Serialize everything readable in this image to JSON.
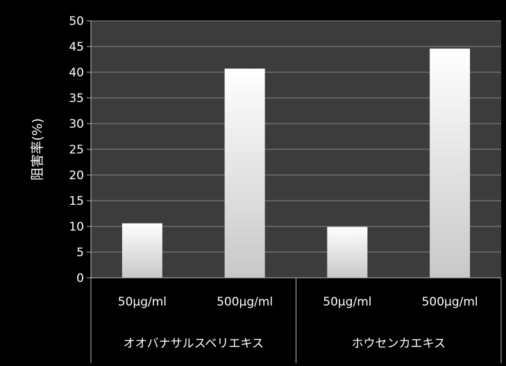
{
  "chart_data": {
    "type": "bar",
    "title": "",
    "xlabel": "",
    "ylabel": "阻害率(%)",
    "ylim": [
      0,
      50
    ],
    "ytick_step": 5,
    "grid": true,
    "legend": "none",
    "groups": [
      {
        "label": "オオバナサルスベリエキス",
        "categories": [
          "50µg/ml",
          "500µg/ml"
        ],
        "values": [
          10.6,
          40.7
        ]
      },
      {
        "label": "ホウセンカエキス",
        "categories": [
          "50µg/ml",
          "500µg/ml"
        ],
        "values": [
          9.9,
          44.6
        ]
      }
    ],
    "colors": {
      "background": "#000000",
      "plot_area": "#3c3c3c",
      "gridline": "#888888",
      "bar_light": "#ffffff",
      "bar_dark": "#c8c8c8",
      "text": "#ffffff",
      "axis": "#bbbbbb"
    }
  }
}
